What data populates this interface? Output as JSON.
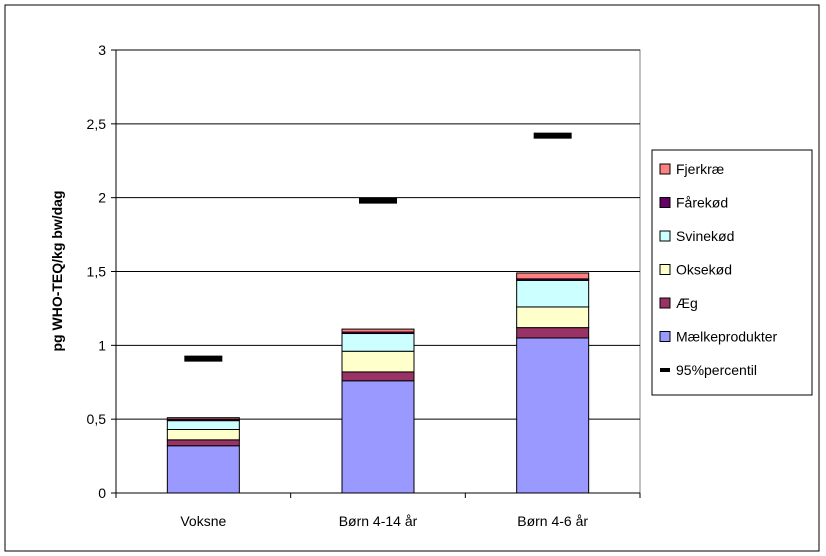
{
  "chart_data": {
    "type": "bar",
    "stacked": true,
    "title": "",
    "xlabel": "",
    "ylabel": "pg WHO-TEQ/kg bw/dag",
    "ylim": [
      0,
      3
    ],
    "yticks": [
      0,
      0.5,
      1,
      1.5,
      2,
      2.5,
      3
    ],
    "ytick_labels": [
      "0",
      "0,5",
      "1",
      "1,5",
      "2",
      "2,5",
      "3"
    ],
    "categories": [
      "Voksne",
      "Børn 4-14 år",
      "Børn 4-6 år"
    ],
    "series": [
      {
        "name": "Mælkeprodukter",
        "color": "#9999ff",
        "values": [
          0.32,
          0.76,
          1.05
        ]
      },
      {
        "name": "Æg",
        "color": "#993366",
        "values": [
          0.04,
          0.06,
          0.07
        ]
      },
      {
        "name": "Oksekød",
        "color": "#ffffcc",
        "values": [
          0.07,
          0.14,
          0.14
        ]
      },
      {
        "name": "Svinekød",
        "color": "#ccffff",
        "values": [
          0.06,
          0.12,
          0.18
        ]
      },
      {
        "name": "Fårekød",
        "color": "#660066",
        "values": [
          0.01,
          0.01,
          0.01
        ]
      },
      {
        "name": "Fjerkræ",
        "color": "#ff8080",
        "values": [
          0.01,
          0.02,
          0.04
        ]
      }
    ],
    "percentile": {
      "name": "95%percentil",
      "color": "#000000",
      "values": [
        0.91,
        1.98,
        2.42
      ]
    },
    "legend_order": [
      "Fjerkræ",
      "Fårekød",
      "Svinekød",
      "Oksekød",
      "Æg",
      "Mælkeprodukter",
      "95%percentil"
    ],
    "grid": true,
    "legend_position": "right"
  }
}
